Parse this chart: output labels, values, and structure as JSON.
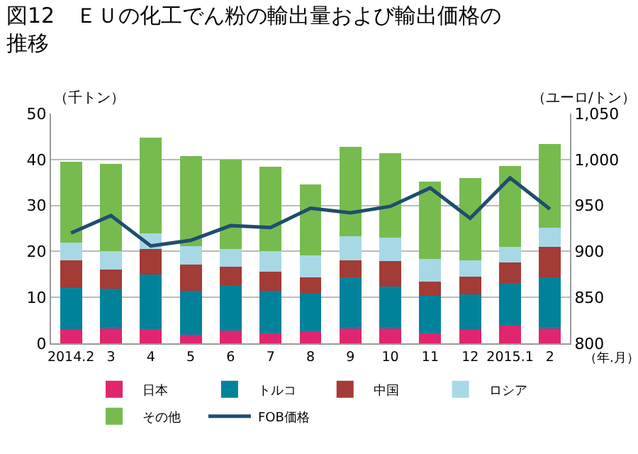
{
  "chart_data": {
    "type": "bar",
    "stacked": true,
    "title": "図12　ＥＵの化工でん粉の輸出量および輸出価格の推移",
    "ylabel": "（千トン）",
    "y2label": "（ユーロ/トン）",
    "xlabel": "（年.月）",
    "categories": [
      "2014.2",
      "3",
      "4",
      "5",
      "6",
      "7",
      "8",
      "9",
      "10",
      "11",
      "12",
      "2015.1",
      "2"
    ],
    "series": [
      {
        "name": "日本",
        "color": "#e0266e",
        "values": [
          2.9,
          3.3,
          3.1,
          1.8,
          2.8,
          2.1,
          2.6,
          3.3,
          3.2,
          2.1,
          2.9,
          3.8,
          3.2
        ]
      },
      {
        "name": "トルコ",
        "color": "#00829b",
        "values": [
          9.3,
          8.6,
          11.8,
          9.6,
          9.9,
          9.3,
          8.4,
          11.1,
          9.1,
          8.2,
          7.8,
          9.3,
          11.2
        ]
      },
      {
        "name": "中国",
        "color": "#a33b36",
        "values": [
          5.8,
          4.1,
          5.6,
          5.7,
          4.0,
          4.2,
          3.3,
          3.7,
          5.6,
          3.2,
          3.8,
          4.5,
          6.6
        ]
      },
      {
        "name": "ロシア",
        "color": "#a8d8e6",
        "values": [
          3.9,
          4.1,
          3.4,
          4.1,
          3.9,
          4.5,
          4.8,
          5.2,
          5.1,
          4.8,
          3.5,
          3.4,
          4.1
        ]
      },
      {
        "name": "その他",
        "color": "#77bb4f",
        "values": [
          17.6,
          19.0,
          20.8,
          19.6,
          19.3,
          18.3,
          15.4,
          19.4,
          18.3,
          16.9,
          17.9,
          17.6,
          18.3
        ]
      },
      {
        "name": "FOB価格",
        "type": "line",
        "axis": "y2",
        "color": "#1f4e6e",
        "values": [
          920,
          939,
          906,
          912,
          928,
          926,
          947,
          942,
          949,
          969,
          936,
          980,
          946
        ]
      }
    ],
    "ylim": [
      0,
      50
    ],
    "yticks": [
      0,
      10,
      20,
      30,
      40,
      50
    ],
    "y2lim": [
      800,
      1050
    ],
    "y2ticks": [
      800,
      850,
      900,
      950,
      {
        "value": 1000,
        "label": "1,000"
      },
      {
        "value": 1050,
        "label": "1,050"
      }
    ],
    "grid": "y",
    "legend": "bottom",
    "marker": "none",
    "line_style": "solid"
  }
}
